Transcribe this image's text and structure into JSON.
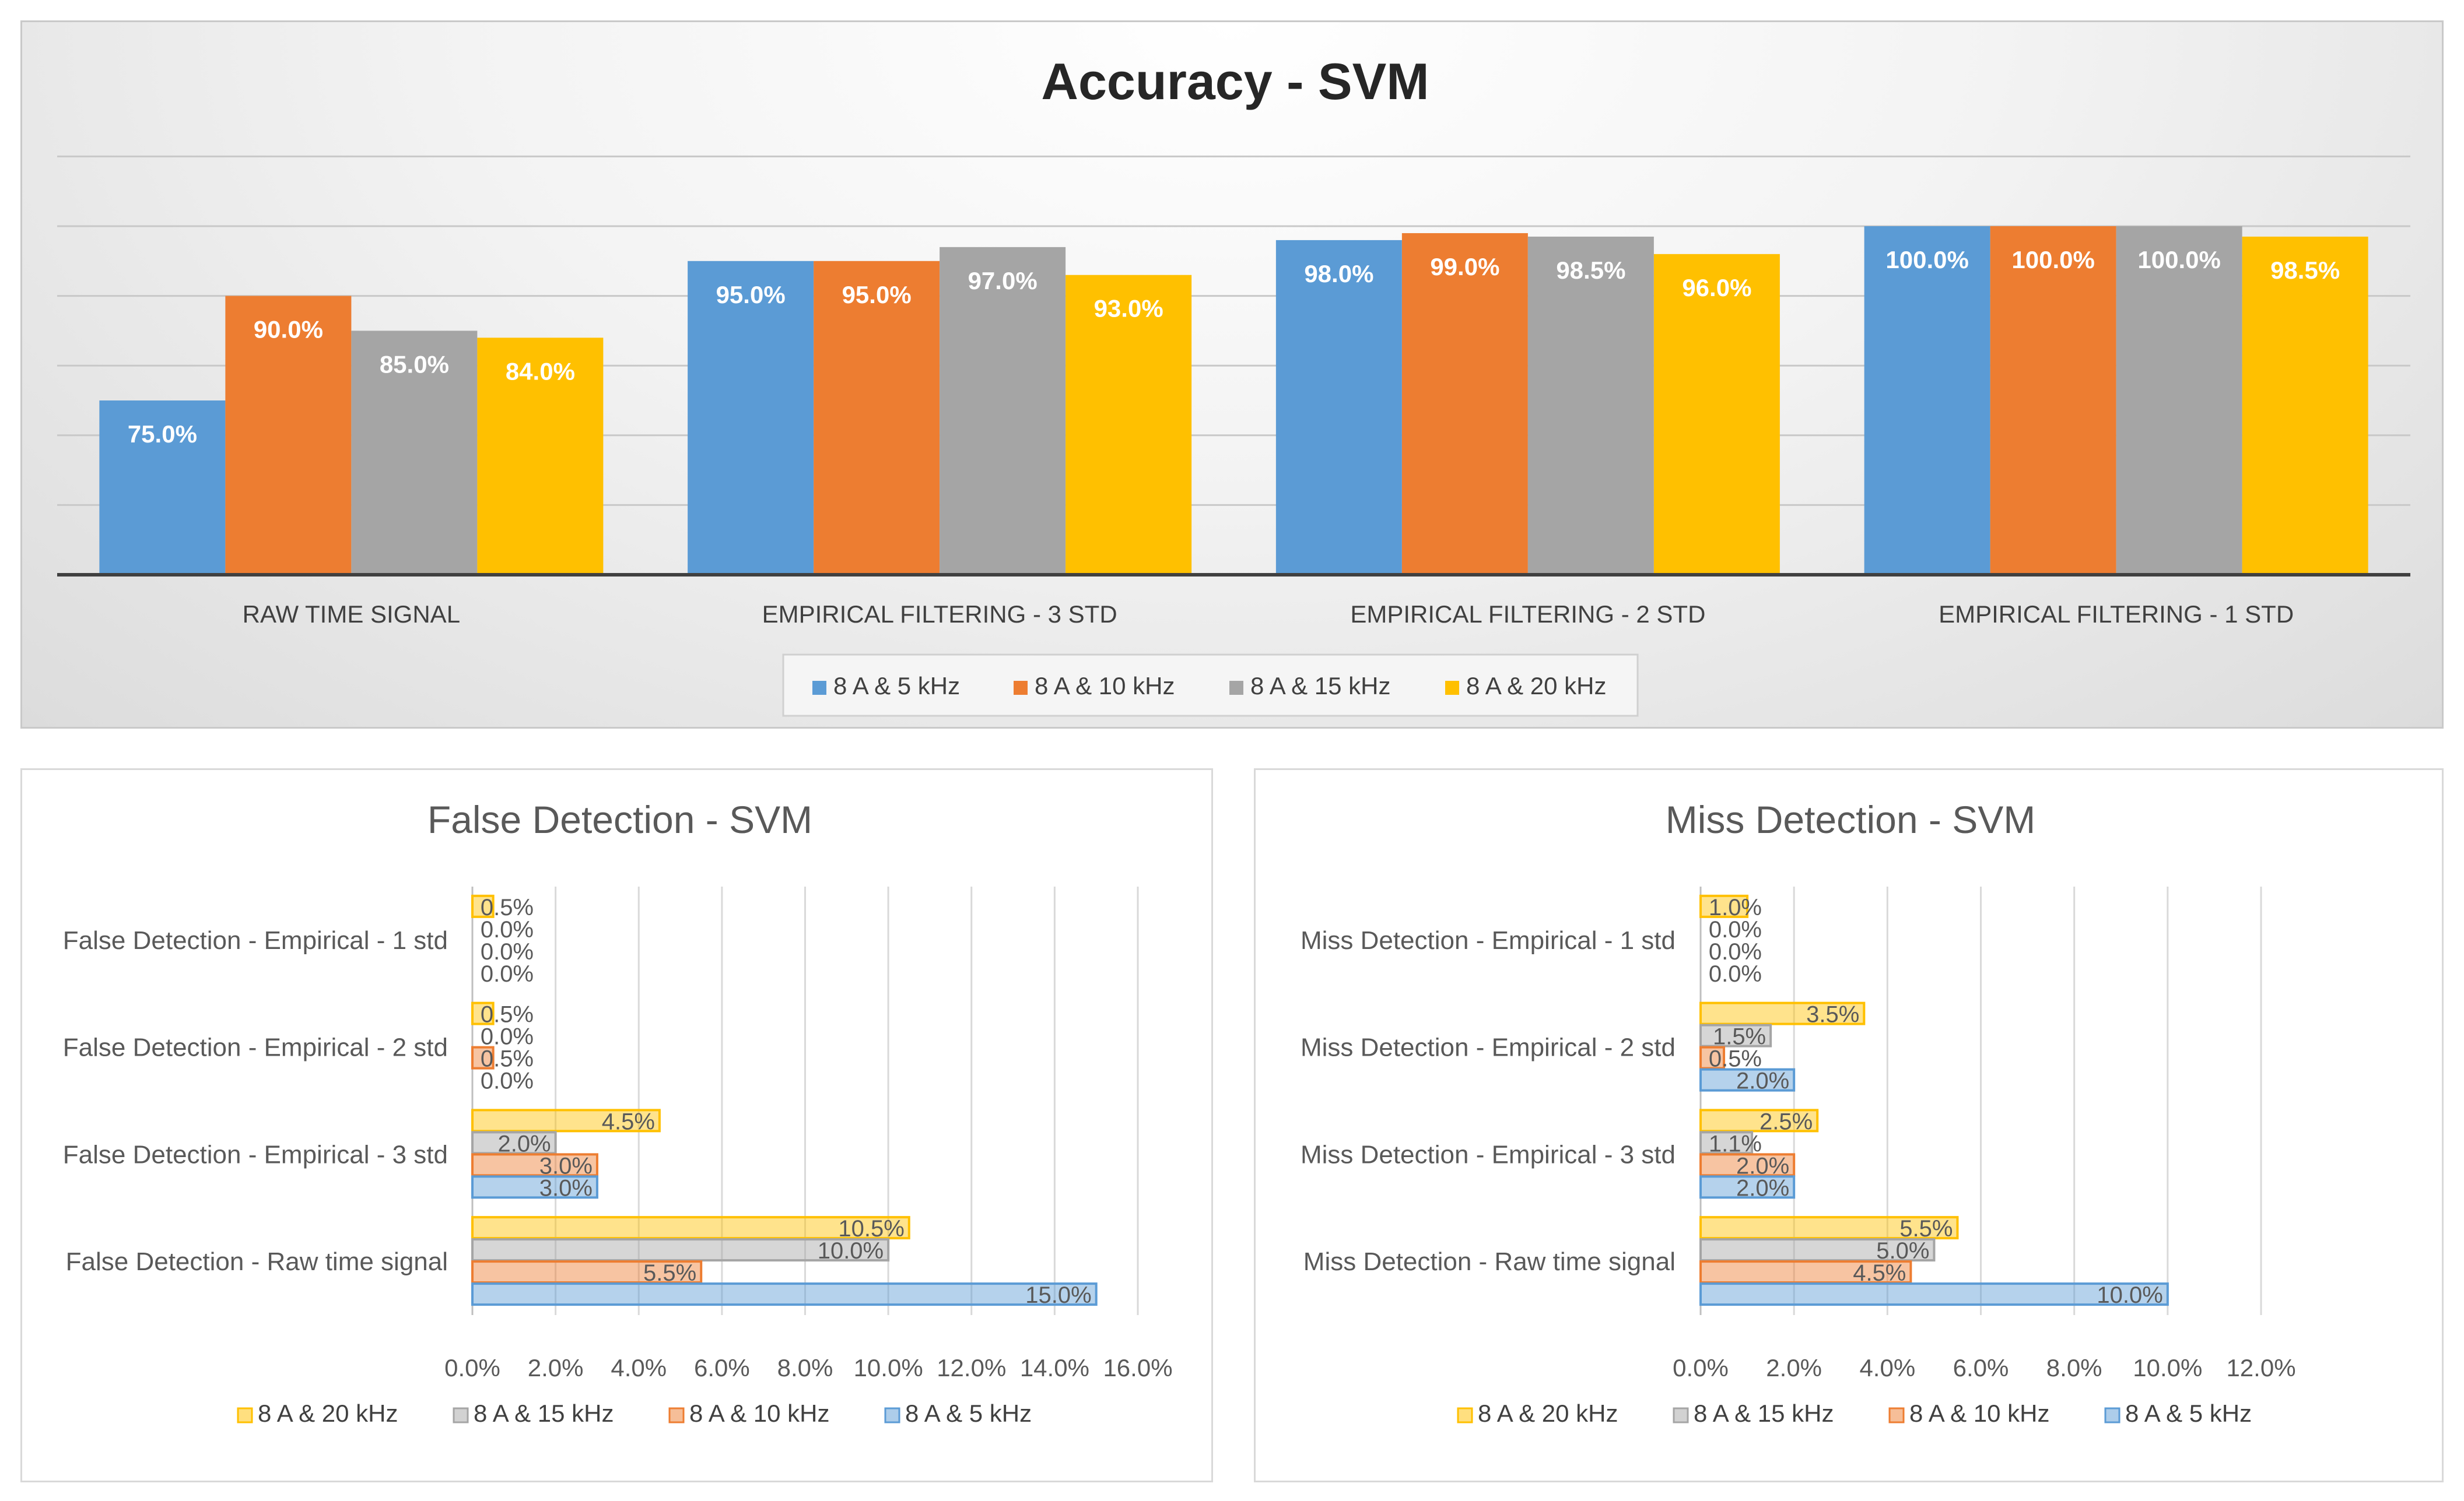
{
  "colors": {
    "s5": "#5b9bd5",
    "s10": "#ed7d31",
    "s15": "#a5a5a5",
    "s20": "#ffc000"
  },
  "chart_data": [
    {
      "type": "bar",
      "title": "Accuracy - SVM",
      "categories": [
        "RAW TIME SIGNAL",
        "EMPIRICAL FILTERING - 3 STD",
        "EMPIRICAL FILTERING - 2 STD",
        "EMPIRICAL FILTERING - 1 STD"
      ],
      "series": [
        {
          "name": "8 A & 5 kHz",
          "values": [
            75.0,
            95.0,
            98.0,
            100.0
          ],
          "labels": [
            "75.0%",
            "95.0%",
            "98.0%",
            "100.0%"
          ]
        },
        {
          "name": "8 A & 10 kHz",
          "values": [
            90.0,
            95.0,
            99.0,
            100.0
          ],
          "labels": [
            "90.0%",
            "95.0%",
            "99.0%",
            "100.0%"
          ]
        },
        {
          "name": "8 A & 15 kHz",
          "values": [
            85.0,
            97.0,
            98.5,
            100.0
          ],
          "labels": [
            "85.0%",
            "97.0%",
            "98.5%",
            "100.0%"
          ]
        },
        {
          "name": "8 A & 20 kHz",
          "values": [
            84.0,
            93.0,
            96.0,
            98.5
          ],
          "labels": [
            "84.0%",
            "93.0%",
            "96.0%",
            "98.5%"
          ]
        }
      ],
      "legend": "bottom",
      "grid": true
    },
    {
      "type": "bar",
      "orientation": "horizontal",
      "title": "False Detection - SVM",
      "categories": [
        "False Detection - Raw time signal",
        "False Detection - Empirical - 3 std",
        "False Detection - Empirical - 2 std",
        "False Detection - Empirical - 1 std"
      ],
      "series": [
        {
          "name": "8 A & 5 kHz",
          "values": [
            15.0,
            3.0,
            0.0,
            0.0
          ],
          "labels": [
            "15.0%",
            "3.0%",
            "0.0%",
            "0.0%"
          ]
        },
        {
          "name": "8 A & 10 kHz",
          "values": [
            5.5,
            3.0,
            0.5,
            0.0
          ],
          "labels": [
            "5.5%",
            "3.0%",
            "0.5%",
            "0.0%"
          ]
        },
        {
          "name": "8 A & 15 kHz",
          "values": [
            10.0,
            2.0,
            0.0,
            0.0
          ],
          "labels": [
            "10.0%",
            "2.0%",
            "0.0%",
            "0.0%"
          ]
        },
        {
          "name": "8 A & 20 kHz",
          "values": [
            10.5,
            4.5,
            0.5,
            0.5
          ],
          "labels": [
            "10.5%",
            "4.5%",
            "0.5%",
            "0.5%"
          ]
        }
      ],
      "xlim": [
        0,
        16
      ],
      "xticks": [
        "0.0%",
        "2.0%",
        "4.0%",
        "6.0%",
        "8.0%",
        "10.0%",
        "12.0%",
        "14.0%",
        "16.0%"
      ],
      "legend_order": [
        "8 A & 20 kHz",
        "8 A & 15 kHz",
        "8 A & 10 kHz",
        "8 A & 5 kHz"
      ],
      "legend": "bottom",
      "grid": true
    },
    {
      "type": "bar",
      "orientation": "horizontal",
      "title": "Miss Detection - SVM",
      "categories": [
        "Miss Detection - Raw time signal",
        "Miss Detection - Empirical - 3 std",
        "Miss Detection - Empirical - 2 std",
        "Miss Detection - Empirical - 1 std"
      ],
      "series": [
        {
          "name": "8 A & 5 kHz",
          "values": [
            10.0,
            2.0,
            2.0,
            0.0
          ],
          "labels": [
            "10.0%",
            "2.0%",
            "2.0%",
            "0.0%"
          ]
        },
        {
          "name": "8 A & 10 kHz",
          "values": [
            4.5,
            2.0,
            0.5,
            0.0
          ],
          "labels": [
            "4.5%",
            "2.0%",
            "0.5%",
            "0.0%"
          ]
        },
        {
          "name": "8 A & 15 kHz",
          "values": [
            5.0,
            1.1,
            1.5,
            0.0
          ],
          "labels": [
            "5.0%",
            "1.1%",
            "1.5%",
            "0.0%"
          ]
        },
        {
          "name": "8 A & 20 kHz",
          "values": [
            5.5,
            2.5,
            3.5,
            1.0
          ],
          "labels": [
            "5.5%",
            "2.5%",
            "3.5%",
            "1.0%"
          ]
        }
      ],
      "xlim": [
        0,
        12
      ],
      "xticks": [
        "0.0%",
        "2.0%",
        "4.0%",
        "6.0%",
        "8.0%",
        "10.0%",
        "12.0%"
      ],
      "legend_order": [
        "8 A & 20 kHz",
        "8 A & 15 kHz",
        "8 A & 10 kHz",
        "8 A & 5 kHz"
      ],
      "legend": "bottom",
      "grid": true
    }
  ]
}
